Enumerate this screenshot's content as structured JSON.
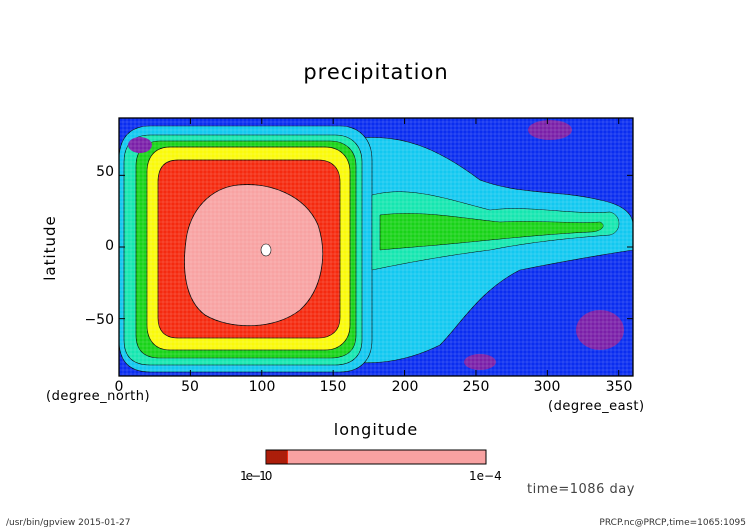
{
  "chart_data": {
    "type": "heatmap",
    "title": "precipitation",
    "xlabel": "longitude",
    "ylabel": "latitude",
    "x_unit": "(degree_east)",
    "y_unit": "(degree_north)",
    "xlim": [
      0,
      360
    ],
    "ylim": [
      -90,
      90
    ],
    "x_ticks": [
      "0",
      "50",
      "100",
      "150",
      "200",
      "250",
      "300",
      "350"
    ],
    "y_ticks": [
      "50",
      "0",
      "−50"
    ],
    "grid": true,
    "colors": {
      "lowest": "#7a1fa8",
      "low": "#0a2df0",
      "cyan": "#12c8f0",
      "teal": "#15e6b0",
      "green": "#18d318",
      "yellow": "#fafa0a",
      "red": "#f52a0f",
      "pink": "#f8a2a2"
    },
    "colorbar": {
      "min_label": "1e−10",
      "max_label": "1e−4",
      "max_value": 0.0001
    }
  },
  "annotations": {
    "time": "time=1086 day",
    "footer_left": "/usr/bin/gpview  2015-01-27",
    "footer_right": "PRCP.nc@PRCP,time=1065:1095"
  }
}
